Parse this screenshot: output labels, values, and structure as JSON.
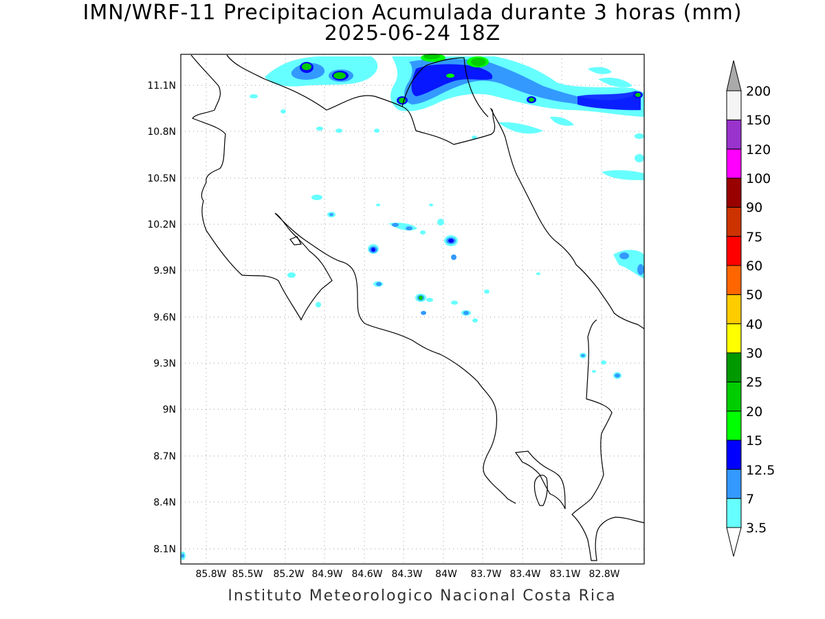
{
  "title": {
    "line1": "IMN/WRF-11 Precipitacion Acumulada durante 3 horas (mm)",
    "line2": "2025-06-24 18Z"
  },
  "footer": "Instituto Meteorologico Nacional Costa Rica",
  "axes": {
    "latitude_labels": [
      "11.1N",
      "10.8N",
      "10.5N",
      "10.2N",
      "9.9N",
      "9.6N",
      "9.3N",
      "9N",
      "8.7N",
      "8.4N",
      "8.1N"
    ],
    "longitude_labels": [
      "85.8W",
      "85.5W",
      "85.2W",
      "84.9W",
      "84.6W",
      "84.3W",
      "84W",
      "83.7W",
      "83.4W",
      "83.1W",
      "82.8W"
    ],
    "gridlines": "dotted"
  },
  "colorbar": {
    "unit": "mm",
    "levels": [
      "3.5",
      "7",
      "12.5",
      "15",
      "20",
      "25",
      "30",
      "40",
      "50",
      "60",
      "75",
      "90",
      "100",
      "120",
      "150",
      "200"
    ],
    "colors": [
      "#66ffff",
      "#3399ff",
      "#0000ff",
      "#00ff00",
      "#00cc00",
      "#009900",
      "#ffff00",
      "#ffcc00",
      "#ff6600",
      "#ff0000",
      "#cc3300",
      "#990000",
      "#ff00ff",
      "#9933cc",
      "#f5f5f5",
      "#aaaaaa"
    ]
  }
}
